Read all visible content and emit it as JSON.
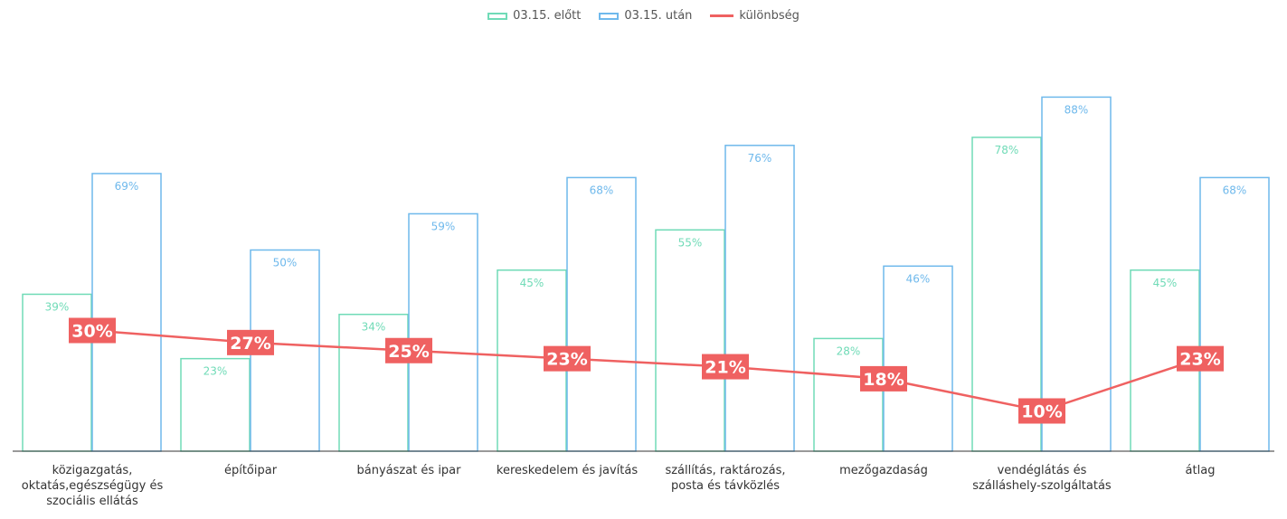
{
  "colors": {
    "before": "#70dbb7",
    "after": "#6fb9ec",
    "diff": "#ef6161"
  },
  "legend": {
    "before": "03.15. előtt",
    "after": "03.15. után",
    "diff": "különbség"
  },
  "chart_data": {
    "type": "bar",
    "categories": [
      "közigazgatás, oktatás,egészségügy és szociális ellátás",
      "építőipar",
      "bányászat és ipar",
      "kereskedelem és javítás",
      "szállítás, raktározás, posta és távközlés",
      "mezőgazdaság",
      "vendéglátás és szálláshely-szolgáltatás",
      "átlag"
    ],
    "series": [
      {
        "name": "03.15. előtt",
        "kind": "bar",
        "values": [
          39,
          23,
          34,
          45,
          55,
          28,
          78,
          45
        ],
        "labels": [
          "39%",
          "23%",
          "34%",
          "45%",
          "55%",
          "28%",
          "78%",
          "45%"
        ]
      },
      {
        "name": "03.15. után",
        "kind": "bar",
        "values": [
          69,
          50,
          59,
          68,
          76,
          46,
          88,
          68
        ],
        "labels": [
          "69%",
          "50%",
          "59%",
          "68%",
          "76%",
          "46%",
          "88%",
          "68%"
        ]
      },
      {
        "name": "különbség",
        "kind": "line",
        "values": [
          30,
          27,
          25,
          23,
          21,
          18,
          10,
          23
        ],
        "labels": [
          "30%",
          "27%",
          "25%",
          "23%",
          "21%",
          "18%",
          "10%",
          "23%"
        ]
      }
    ],
    "ylim": [
      0,
      100
    ],
    "grid": false,
    "legend_position": "top-center"
  }
}
